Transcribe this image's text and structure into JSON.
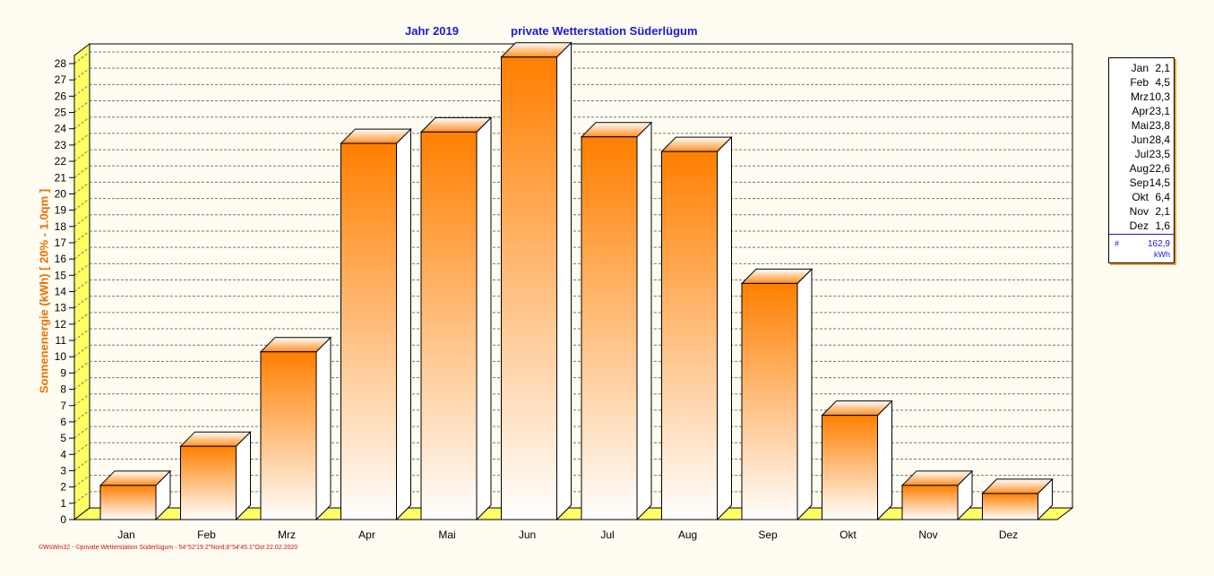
{
  "header": {
    "year_title": "Jahr  2019",
    "station_title": "private Wetterstation Süderlügum"
  },
  "chart_data": {
    "type": "bar",
    "categories": [
      "Jan",
      "Feb",
      "Mrz",
      "Apr",
      "Mai",
      "Jun",
      "Jul",
      "Aug",
      "Sep",
      "Okt",
      "Nov",
      "Dez"
    ],
    "values": [
      2.1,
      4.5,
      10.3,
      23.1,
      23.8,
      28.4,
      23.5,
      22.6,
      14.5,
      6.4,
      2.1,
      1.6
    ],
    "ylabel": "Sonnenenergie  (kWh)    [ 20% - 1.0qm ]",
    "xlabel": "",
    "ylim": [
      0,
      28
    ],
    "yticks": [
      0,
      1,
      2,
      3,
      4,
      5,
      6,
      7,
      8,
      9,
      10,
      11,
      12,
      13,
      14,
      15,
      16,
      17,
      18,
      19,
      20,
      21,
      22,
      23,
      24,
      25,
      26,
      27,
      28
    ],
    "grid": true,
    "style": "3d-bars",
    "colors": {
      "bar_top": "#ff7f00",
      "bar_bottom": "#ffffff",
      "wall": "#ffff66",
      "title": "#1a1ad6",
      "axis_label": "#e87000"
    }
  },
  "legend": {
    "rows": [
      {
        "month": "Jan",
        "value": "2,1"
      },
      {
        "month": "Feb",
        "value": "4,5"
      },
      {
        "month": "Mrz",
        "value": "10,3"
      },
      {
        "month": "Apr",
        "value": "23,1"
      },
      {
        "month": "Mai",
        "value": "23,8"
      },
      {
        "month": "Jun",
        "value": "28,4"
      },
      {
        "month": "Jul",
        "value": "23,5"
      },
      {
        "month": "Aug",
        "value": "22,6"
      },
      {
        "month": "Sep",
        "value": "14,5"
      },
      {
        "month": "Okt",
        "value": "6,4"
      },
      {
        "month": "Nov",
        "value": "2,1"
      },
      {
        "month": "Dez",
        "value": "1,6"
      }
    ],
    "total_symbol": "#",
    "total_value": "162,9",
    "total_unit": "kWh"
  },
  "footer": {
    "text": "©WsWin32 - ©private Wetterstation Süderlügum - 54°52'19.2\"Nord;8°54'45.1\"Ost  22.02.2020"
  }
}
